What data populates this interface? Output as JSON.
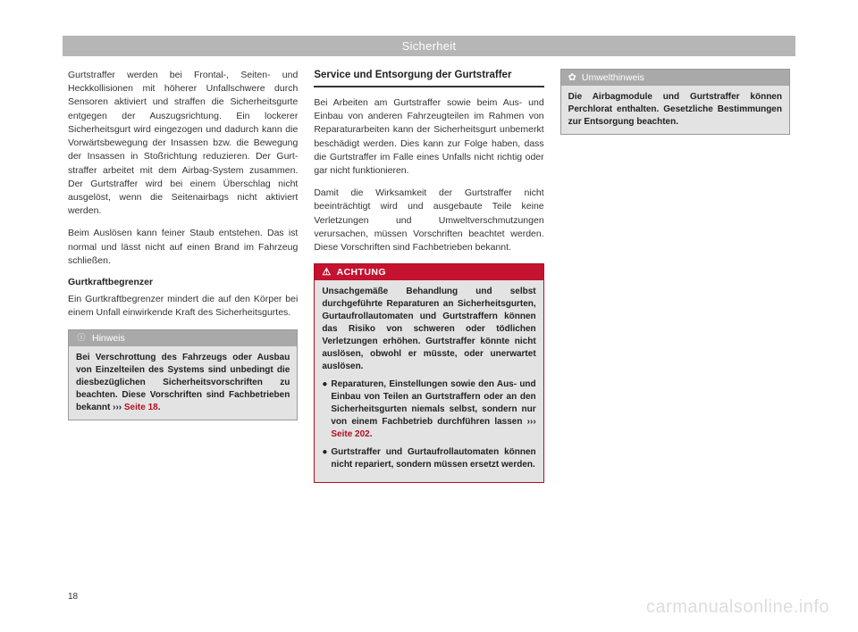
{
  "header": {
    "title": "Sicherheit"
  },
  "col1": {
    "p1": "Gurtstraffer werden bei Frontal-, Seiten- und Heckkollisionen mit höherer Unfallschwere durch Sensoren aktiviert und straffen die Si­cherheitsgurte entgegen der Auszugsrich­tung. Ein lockerer Sicherheitsgurt wird einge­zogen und dadurch kann die Vorwärtsbewe­gung der Insassen bzw. die Bewegung der In­sassen in Stoßrichtung reduzieren. Der Gurt­straffer arbeitet mit dem Airbag-System zu­sammen. Der Gurtstraffer wird bei einem Überschlag nicht ausgelöst, wenn die Seiten­airbags nicht aktiviert werden.",
    "p2": "Beim Auslösen kann feiner Staub entstehen. Das ist normal und lässt nicht auf einen Brand im Fahrzeug schließen.",
    "sub1": "Gurtkraftbegrenzer",
    "p3": "Ein Gurtkraftbegrenzer mindert die auf den Körper bei einem Unfall einwirkende Kraft des Sicherheitsgurtes.",
    "note": {
      "icon": "ⓘ",
      "title": "Hinweis",
      "body_pre": "Bei Verschrottung des Fahrzeugs oder Ausbau von Einzelteilen des Systems sind unbedingt die diesbezüglichen Sicherheitsvorschriften zu beachten. Diese Vorschriften sind Fachbe­trieben bekannt ››› ",
      "body_link": "Seite 18",
      "body_post": "."
    }
  },
  "col2": {
    "heading": "Service und Entsorgung der Gurtstraffer",
    "p1": "Bei Arbeiten am Gurtstraffer sowie beim Aus- und Einbau von anderen Fahrzeugteilen im Rahmen von Reparaturarbeiten kann der Si­cherheitsgurt unbemerkt beschädigt werden. Dies kann zur Folge haben, dass die Gurt­straffer im Falle eines Unfalls nicht richtig oder gar nicht funktionieren.",
    "p2": "Damit die Wirksamkeit der Gurtstraffer nicht beeinträchtigt wird und ausgebaute Teile kei­ne Verletzungen und Umweltverschmutzun­gen verursachen, müssen Vorschriften beach­tet werden. Diese Vorschriften sind Fachbe­trieben bekannt.",
    "warn": {
      "icon": "⚠",
      "title": "ACHTUNG",
      "p1": "Unsachgemäße Behandlung und selbst durchgeführte Reparaturen an Sicherheits­gurten, Gurtaufrollautomaten und Gurtstraf­fern können das Risiko von schweren oder tödlichen Verletzungen erhöhen. Gurtstraffer könnte nicht auslösen, obwohl er müsste, oder unerwartet auslösen.",
      "b1_pre": "Reparaturen, Einstellungen sowie den Aus- und Einbau von Teilen an Gurtstraffern oder an den Sicherheitsgurten niemals selbst, sondern nur von einem Fachbetrieb durchfüh­ren lassen ››› ",
      "b1_link": "Seite 202",
      "b1_post": ".",
      "b2": "Gurtstraffer und Gurtaufrollautomaten kön­nen nicht repariert, sondern müssen ersetzt werden."
    }
  },
  "col3": {
    "env": {
      "icon": "✿",
      "title": "Umwelthinweis",
      "body": "Die Airbagmodule und Gurtstraffer können Perchlorat enthalten. Gesetzliche Bestim­mungen zur Entsorgung beachten."
    }
  },
  "page_number": "18",
  "watermark": "carmanualsonline.info"
}
